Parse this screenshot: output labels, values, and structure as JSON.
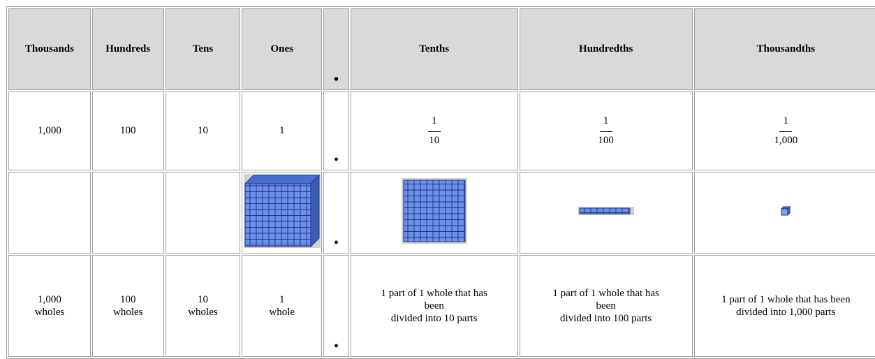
{
  "table": {
    "header": [
      "Thousands",
      "Hundreds",
      "Tens",
      "Ones",
      "•",
      "Tenths",
      "Hundredths",
      "Thousandths"
    ],
    "rows": [
      {
        "cells": [
          "1,000",
          "100",
          "10",
          "1"
        ],
        "dot": "•",
        "fractions": [
          {
            "numerator": "1",
            "denominator": "10"
          },
          {
            "numerator": "1",
            "denominator": "100"
          },
          {
            "numerator": "1",
            "denominator": "1,000"
          }
        ]
      },
      {
        "dot": "•"
      },
      {
        "cells": [
          [
            "1,000",
            "wholes"
          ],
          [
            "100",
            "wholes"
          ],
          [
            "10",
            "wholes"
          ],
          [
            "1",
            "whole"
          ]
        ],
        "dot": "•",
        "descriptions": [
          [
            "1 part of 1 whole that has",
            "been",
            "divided into 10 parts"
          ],
          [
            "1 part of 1 whole that has",
            "been",
            "divided into 100 parts"
          ],
          [
            "1 part of 1 whole that has been",
            "divided into 1,000 parts"
          ]
        ]
      }
    ]
  }
}
